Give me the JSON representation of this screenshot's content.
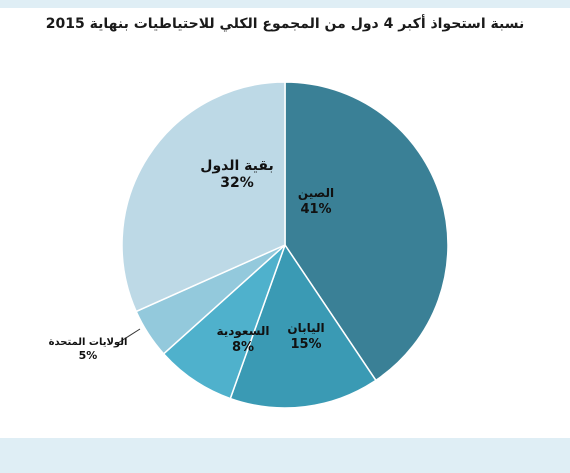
{
  "chart_data": {
    "type": "pie",
    "title": "نسبة استحواذ أكبر 4 دول من المجموع الكلي للاحتياطيات بنهاية 2015",
    "slices": [
      {
        "name": "الصين",
        "value": 41,
        "label": "41%",
        "color": "#3a8096"
      },
      {
        "name": "اليابان",
        "value": 15,
        "label": "15%",
        "color": "#3a9ab4"
      },
      {
        "name": "السعودية",
        "value": 8,
        "label": "8%",
        "color": "#4fb1cc"
      },
      {
        "name": "الولايات المتحدة",
        "value": 5,
        "label": "5%",
        "color": "#93c9dc"
      },
      {
        "name": "بقية الدول",
        "value": 32,
        "label": "32%",
        "color": "#bdd9e6"
      }
    ]
  }
}
